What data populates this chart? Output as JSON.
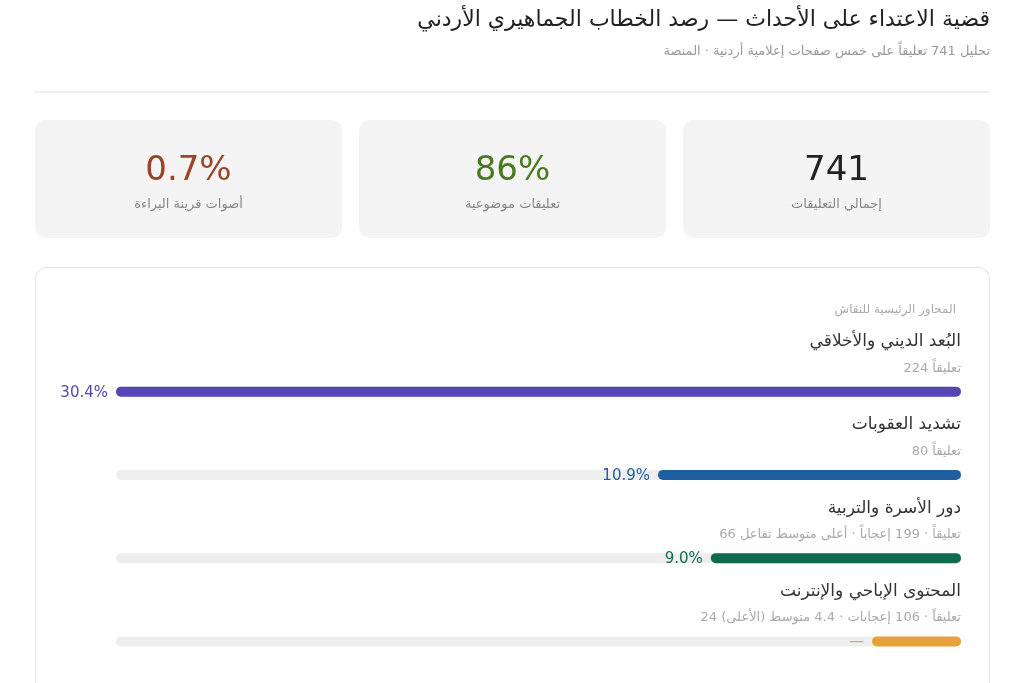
{
  "chart_data": [
    {
      "type": "other",
      "title": "قضية الاعتداء على الأحداث — رصد الخطاب الجماهيري الأردني",
      "subtitle": "تحليل 741 تعليقاً على خمس صفحات إعلامية أردنية · المنصة",
      "annotations": [
        "741",
        "إجمالي التعليقات",
        "86%",
        "تعليقات موضوعية",
        "0.7%",
        "أصوات قرينة البراءة"
      ],
      "colors": [
        "#222222",
        "#4a7a1e",
        "#9b4526"
      ]
    },
    {
      "type": "bar",
      "orientation": "horizontal",
      "title": "المحاور الرئيسية للنقاش",
      "categories": [
        "البُعد الديني والأخلاقي",
        "تشديد العقوبات",
        "دور الأسرة والتربية",
        "المحتوى الإباحي والإنترنت"
      ],
      "values": [
        30.4,
        10.9,
        9.0,
        3.2
      ],
      "colors": [
        "#5546b8",
        "#1f5fa0",
        "#0f6b50",
        "#e8a23a"
      ],
      "value_labels": [
        "30.4%",
        "10.9%",
        "9.0%",
        "—"
      ],
      "annotations": [
        "224 تعليقاً",
        "80 تعليقاً",
        "66 تعليقاً · 199 إعجاباً · أعلى متوسط تفاعل",
        "24 تعليقاً · 106 إعجابات · 4.4 متوسط (الأعلى)"
      ]
    }
  ]
}
